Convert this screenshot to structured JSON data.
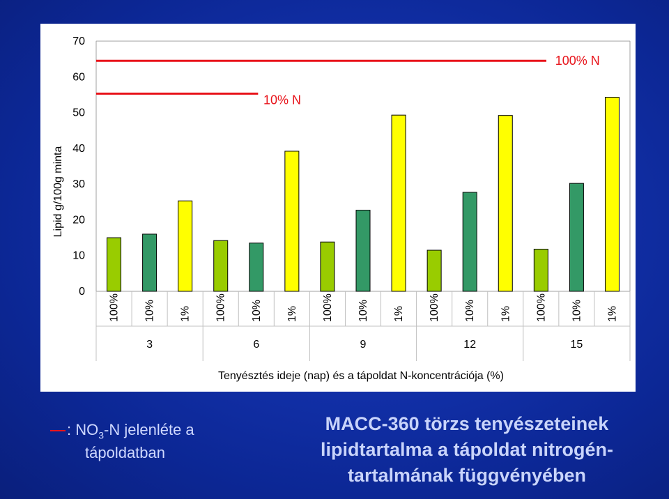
{
  "chart_data": {
    "type": "bar",
    "ylabel": "Lipid g/100g minta",
    "xlabel": "Tenyésztés ideje (nap) és a tápoldat N-koncentrációja (%)",
    "ylim": [
      0,
      70
    ],
    "yticks": [
      "0",
      "10",
      "20",
      "30",
      "40",
      "50",
      "60",
      "70"
    ],
    "grid": false,
    "days": [
      "3",
      "6",
      "9",
      "12",
      "15"
    ],
    "concentrations": [
      "100%",
      "10%",
      "1%"
    ],
    "categories": [
      "100%",
      "10%",
      "1%",
      "100%",
      "10%",
      "1%",
      "100%",
      "10%",
      "1%",
      "100%",
      "10%",
      "1%",
      "100%",
      "10%",
      "1%"
    ],
    "values": [
      15,
      16,
      25.3,
      14.2,
      13.5,
      39.2,
      13.8,
      22.7,
      49.3,
      11.5,
      27.7,
      49.2,
      11.8,
      30.2,
      54.3
    ],
    "colors": {
      "100%": "#99cc00",
      "10%": "#339966",
      "1%": "#ffff00"
    },
    "annotations": {
      "n10": "10% N",
      "n100": "100% N"
    },
    "annotation_color": "#e8141b"
  },
  "legend": {
    "prefix": ": NO",
    "sub": "3",
    "suffix": "-N jelenléte a",
    "line2": "tápoldatban"
  },
  "caption": {
    "line1": "MACC-360 törzs tenyészeteinek",
    "line2": "lipidtartalma a tápoldat nitrogén-",
    "line3": "tartalmának függvényében"
  }
}
